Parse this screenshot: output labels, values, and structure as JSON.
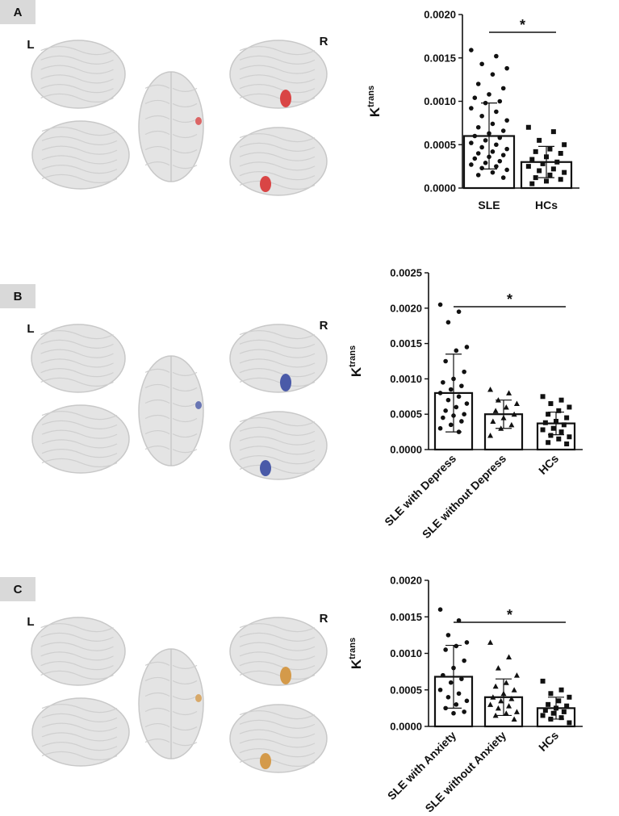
{
  "chart_data": [
    {
      "type": "bar",
      "panel_label": "A",
      "hemisphere_labels": [
        "L",
        "R"
      ],
      "region_color": "#d94545",
      "ylabel": "K",
      "ylabel_superscript": "trans",
      "categories": [
        "SLE",
        "HCs"
      ],
      "values": [
        0.0006,
        0.0003
      ],
      "errors": [
        0.00038,
        0.00018
      ],
      "markers": [
        "circle",
        "square"
      ],
      "color": "#ffffff",
      "points": [
        [
          0.00159,
          0.00152,
          0.00143,
          0.00138,
          0.00131,
          0.0012,
          0.00115,
          0.00108,
          0.00104,
          0.001,
          0.00098,
          0.00092,
          0.00088,
          0.00083,
          0.00078,
          0.00074,
          0.0007,
          0.00066,
          0.00063,
          0.0006,
          0.00058,
          0.00055,
          0.00052,
          0.0005,
          0.00047,
          0.00045,
          0.00042,
          0.0004,
          0.00038,
          0.00036,
          0.00034,
          0.00031,
          0.00029,
          0.00027,
          0.00025,
          0.00023,
          0.00021,
          0.00018,
          0.00015,
          0.00012
        ],
        [
          0.0007,
          0.00065,
          0.00055,
          0.0005,
          0.00045,
          0.00042,
          0.0004,
          0.00036,
          0.00033,
          0.0003,
          0.00028,
          0.00025,
          0.00022,
          0.0002,
          0.00018,
          0.00015,
          0.00012,
          0.0001,
          8e-05,
          5e-05
        ]
      ],
      "significance": {
        "text": "*",
        "between": [
          "SLE",
          "HCs"
        ]
      },
      "ylim": [
        0,
        0.002
      ],
      "yticks": [
        {
          "value": 0,
          "label": "0.0000"
        },
        {
          "value": 0.0005,
          "label": "0.0005"
        },
        {
          "value": 0.001,
          "label": "0.0010"
        },
        {
          "value": 0.0015,
          "label": "0.0015"
        },
        {
          "value": 0.002,
          "label": "0.0020"
        }
      ]
    },
    {
      "type": "bar",
      "panel_label": "B",
      "hemisphere_labels": [
        "L",
        "R"
      ],
      "region_color": "#4a5aa8",
      "ylabel": "K",
      "ylabel_superscript": "trans",
      "categories": [
        "SLE with Depress",
        "SLE without Depress",
        "HCs"
      ],
      "values": [
        0.0008,
        0.0005,
        0.00037
      ],
      "errors": [
        0.00055,
        0.0002,
        0.00016
      ],
      "markers": [
        "circle",
        "triangle",
        "square"
      ],
      "color": "#ffffff",
      "points": [
        [
          0.00205,
          0.00195,
          0.0018,
          0.00145,
          0.0014,
          0.00125,
          0.0011,
          0.001,
          0.00095,
          0.0009,
          0.00085,
          0.0008,
          0.00075,
          0.0007,
          0.00065,
          0.0006,
          0.00055,
          0.0005,
          0.00048,
          0.00045,
          0.0004,
          0.00035,
          0.0003,
          0.00025
        ],
        [
          0.00085,
          0.0008,
          0.0007,
          0.00065,
          0.0006,
          0.00055,
          0.0005,
          0.00045,
          0.0004,
          0.00035,
          0.0003,
          0.0002
        ],
        [
          0.00075,
          0.0007,
          0.00065,
          0.0006,
          0.00055,
          0.0005,
          0.00045,
          0.0004,
          0.00038,
          0.00035,
          0.0003,
          0.00028,
          0.00025,
          0.0002,
          0.00018,
          0.00015,
          0.0001,
          8e-05
        ]
      ],
      "significance": {
        "text": "*",
        "between": [
          "SLE with Depress",
          "HCs"
        ]
      },
      "ylim": [
        0,
        0.0025
      ],
      "yticks": [
        {
          "value": 0,
          "label": "0.0000"
        },
        {
          "value": 0.0005,
          "label": "0.0005"
        },
        {
          "value": 0.001,
          "label": "0.0010"
        },
        {
          "value": 0.0015,
          "label": "0.0015"
        },
        {
          "value": 0.002,
          "label": "0.0020"
        },
        {
          "value": 0.0025,
          "label": "0.0025"
        }
      ]
    },
    {
      "type": "bar",
      "panel_label": "C",
      "hemisphere_labels": [
        "L",
        "R"
      ],
      "region_color": "#d49a4a",
      "ylabel": "K",
      "ylabel_superscript": "trans",
      "categories": [
        "SLE with Anxiety",
        "SLE without Anxiety",
        "HCs"
      ],
      "values": [
        0.00068,
        0.0004,
        0.00025
      ],
      "errors": [
        0.00043,
        0.00025,
        0.00015
      ],
      "markers": [
        "circle",
        "triangle",
        "square"
      ],
      "color": "#ffffff",
      "points": [
        [
          0.0016,
          0.00145,
          0.00125,
          0.00115,
          0.0011,
          0.00105,
          0.0009,
          0.0008,
          0.0007,
          0.00065,
          0.0006,
          0.0005,
          0.00045,
          0.0004,
          0.00035,
          0.0003,
          0.00025,
          0.0002,
          0.00018
        ],
        [
          0.00115,
          0.00095,
          0.0008,
          0.0007,
          0.0006,
          0.00055,
          0.0005,
          0.00045,
          0.0004,
          0.00038,
          0.00035,
          0.0003,
          0.00028,
          0.00025,
          0.0002,
          0.00018,
          0.00015,
          0.0001
        ],
        [
          0.00062,
          0.0005,
          0.00045,
          0.0004,
          0.00035,
          0.0003,
          0.00028,
          0.00025,
          0.00022,
          0.0002,
          0.00018,
          0.00015,
          0.00012,
          0.0001,
          5e-05
        ]
      ],
      "significance": {
        "text": "*",
        "between": [
          "SLE with Anxiety",
          "HCs"
        ]
      },
      "ylim": [
        0,
        0.002
      ],
      "yticks": [
        {
          "value": 0,
          "label": "0.0000"
        },
        {
          "value": 0.0005,
          "label": "0.0005"
        },
        {
          "value": 0.001,
          "label": "0.0010"
        },
        {
          "value": 0.0015,
          "label": "0.0015"
        },
        {
          "value": 0.002,
          "label": "0.0020"
        }
      ]
    }
  ]
}
